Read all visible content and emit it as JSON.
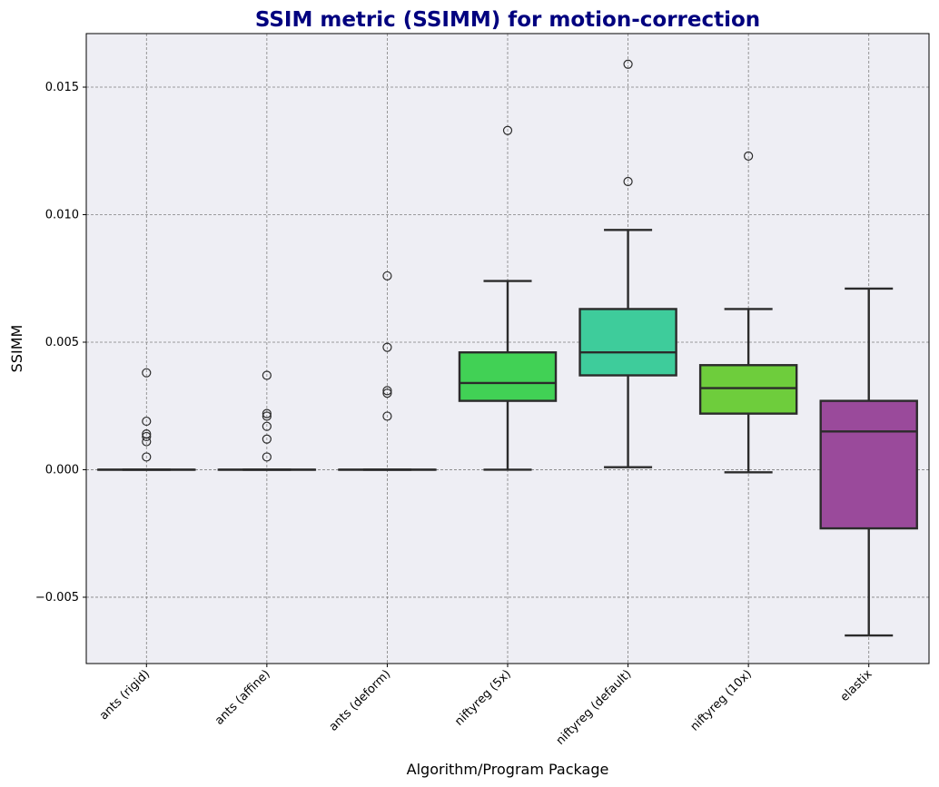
{
  "chart_data": {
    "type": "box",
    "title": "SSIM metric (SSIMM) for motion-correction",
    "xlabel": "Algorithm/Program Package",
    "ylabel": "SSIMM",
    "ylim": [
      -0.0076,
      0.0171
    ],
    "yticks": [
      -0.005,
      0.0,
      0.005,
      0.01,
      0.015
    ],
    "ytick_labels": [
      "−0.005",
      "0.000",
      "0.005",
      "0.010",
      "0.015"
    ],
    "grid": true,
    "categories": [
      "ants (rigid)",
      "ants (affine)",
      "ants (deform)",
      "niftyreg (5x)",
      "niftyreg (default)",
      "niftyreg (10x)",
      "elastix"
    ],
    "colors": [
      "#1f77b4",
      "#ff7f0e",
      "#2ca02c",
      "#41d155",
      "#3ecc9b",
      "#6ecd3c",
      "#9a4a9b"
    ],
    "boxes": [
      {
        "whislo": 0.0,
        "q1": 0.0,
        "med": 0.0,
        "q3": 0.0,
        "whishi": 0.0,
        "fliers": [
          0.0038,
          0.0019,
          0.0014,
          0.0013,
          0.0011,
          0.0005
        ]
      },
      {
        "whislo": 0.0,
        "q1": 0.0,
        "med": 0.0,
        "q3": 0.0,
        "whishi": 0.0,
        "fliers": [
          0.0037,
          0.0022,
          0.0021,
          0.0017,
          0.0012,
          0.0005
        ]
      },
      {
        "whislo": 0.0,
        "q1": 0.0,
        "med": 0.0,
        "q3": 0.0,
        "whishi": 0.0,
        "fliers": [
          0.0076,
          0.0048,
          0.0031,
          0.003,
          0.0021
        ]
      },
      {
        "whislo": 0.0,
        "q1": 0.0027,
        "med": 0.0034,
        "q3": 0.0046,
        "whishi": 0.0074,
        "fliers": [
          0.0133
        ]
      },
      {
        "whislo": 0.0001,
        "q1": 0.0037,
        "med": 0.0046,
        "q3": 0.0063,
        "whishi": 0.0094,
        "fliers": [
          0.0159,
          0.0113
        ]
      },
      {
        "whislo": -0.0001,
        "q1": 0.0022,
        "med": 0.0032,
        "q3": 0.0041,
        "whishi": 0.0063,
        "fliers": [
          0.0123
        ]
      },
      {
        "whislo": -0.0065,
        "q1": -0.0023,
        "med": 0.0015,
        "q3": 0.0027,
        "whishi": 0.0071,
        "fliers": []
      }
    ]
  }
}
